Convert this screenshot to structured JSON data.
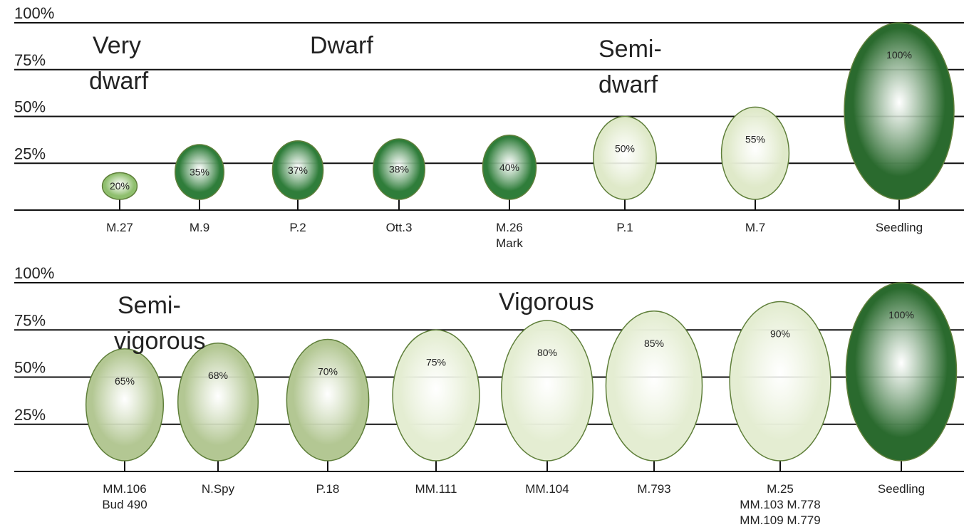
{
  "chart_data": [
    {
      "type": "ellipse",
      "categories": [
        [
          "M.27"
        ],
        [
          "M.9"
        ],
        [
          "P.2"
        ],
        [
          "Ott.3"
        ],
        [
          "M.26",
          "Mark"
        ],
        [
          "P.1"
        ],
        [
          "M.7"
        ],
        [
          "Seedling"
        ]
      ],
      "values": [
        20,
        35,
        37,
        38,
        40,
        50,
        55,
        100
      ],
      "value_labels": [
        "20%",
        "35%",
        "37%",
        "38%",
        "40%",
        "50%",
        "55%",
        "100%"
      ],
      "colors": [
        "#8fbf6e",
        "#2f7d3a",
        "#2f7d3a",
        "#2f7d3a",
        "#2f7d3a",
        "#dfe9c9",
        "#dfe9c9",
        "#2a6a2e"
      ],
      "annotations": [
        [
          "Very",
          "dwarf"
        ],
        [
          "Dwarf"
        ],
        [
          "Semi-",
          "dwarf"
        ]
      ],
      "ylim": [
        0,
        100
      ],
      "yticks": [
        {
          "value": 25,
          "label": "25%"
        },
        {
          "value": 50,
          "label": "50%"
        },
        {
          "value": 75,
          "label": "75%"
        },
        {
          "value": 100,
          "label": "100%"
        }
      ],
      "grid": true
    },
    {
      "type": "ellipse",
      "categories": [
        [
          "MM.106",
          "Bud 490"
        ],
        [
          "N.Spy"
        ],
        [
          "P.18"
        ],
        [
          "MM.111"
        ],
        [
          "MM.104"
        ],
        [
          "M.793"
        ],
        [
          "M.25",
          "MM.103   M.778",
          "MM.109   M.779"
        ],
        [
          "Seedling"
        ]
      ],
      "values": [
        65,
        68,
        70,
        75,
        80,
        85,
        90,
        100
      ],
      "value_labels": [
        "65%",
        "68%",
        "70%",
        "75%",
        "80%",
        "85%",
        "90%",
        "100%"
      ],
      "colors": [
        "#b3c793",
        "#b3c793",
        "#b3c793",
        "#e4edd2",
        "#e4edd2",
        "#e4edd2",
        "#e4edd2",
        "#2a6a2e"
      ],
      "annotations": [
        [
          "Semi-",
          "vigorous"
        ],
        [
          "Vigorous"
        ]
      ],
      "ylim": [
        0,
        100
      ],
      "yticks": [
        {
          "value": 25,
          "label": "25%"
        },
        {
          "value": 50,
          "label": "50%"
        },
        {
          "value": 75,
          "label": "75%"
        },
        {
          "value": 100,
          "label": "100%"
        }
      ],
      "grid": true
    }
  ]
}
